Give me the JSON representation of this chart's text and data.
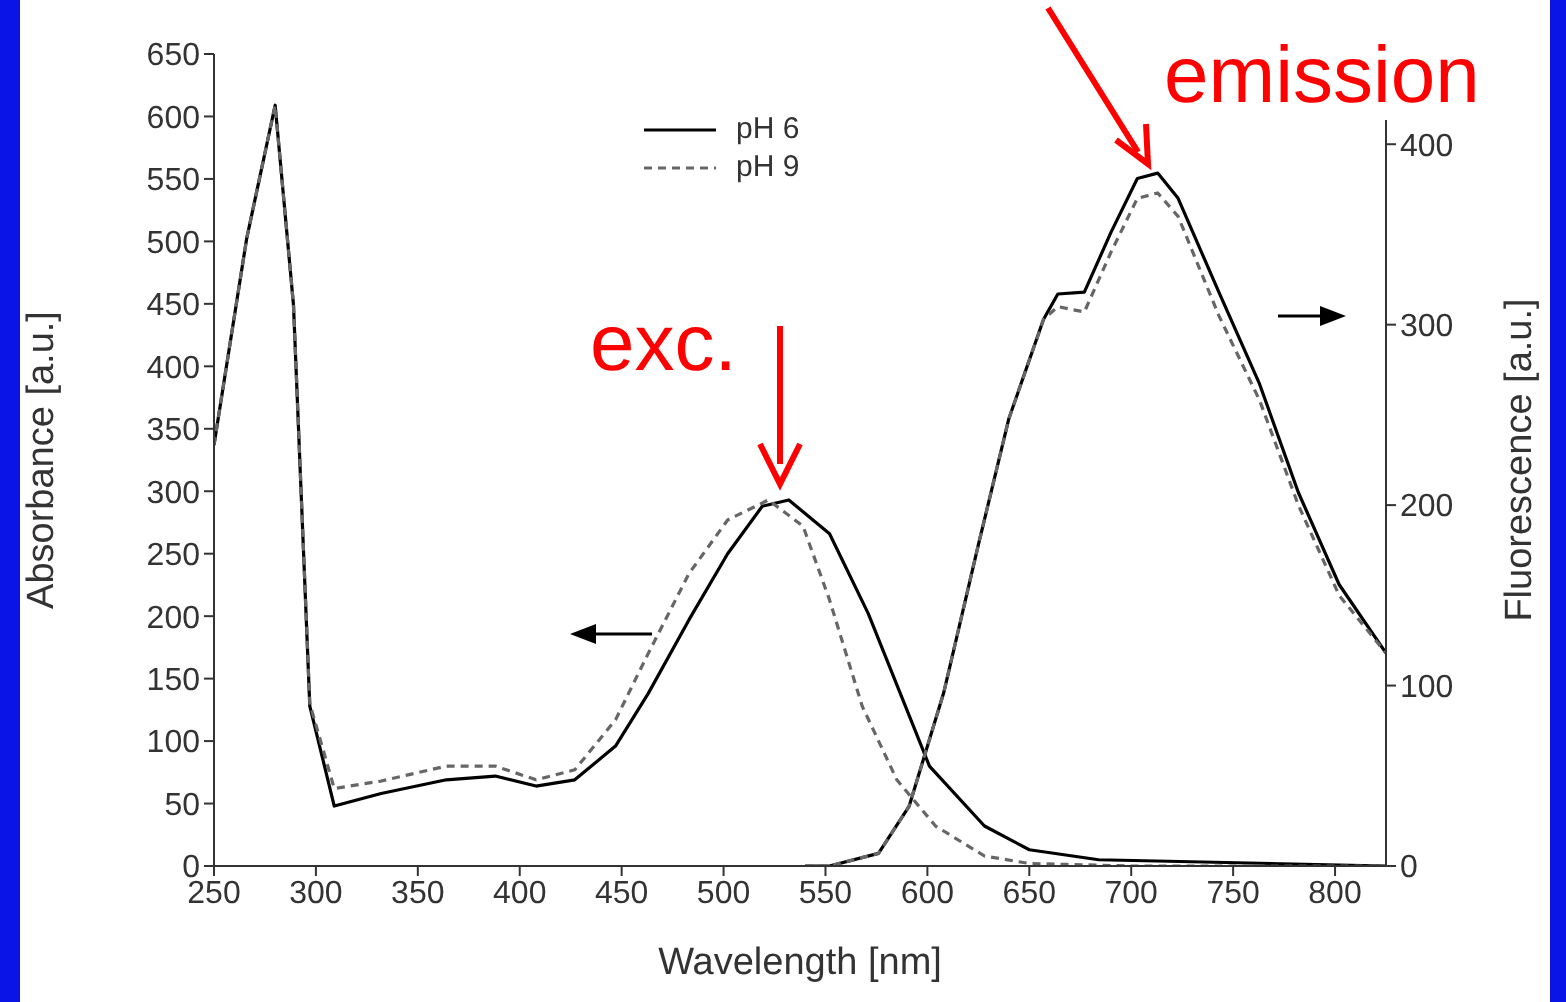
{
  "chart_data": {
    "type": "line",
    "xlabel": "Wavelength [nm]",
    "ylabel": "Absorbance [a.u.]",
    "y2label": "Fluorescence [a.u.]",
    "xlim": [
      250,
      825
    ],
    "xticks": [
      250,
      300,
      350,
      400,
      450,
      500,
      550,
      600,
      650,
      700,
      750,
      800
    ],
    "ylim": [
      0,
      650
    ],
    "yticks": [
      0,
      50,
      100,
      150,
      200,
      250,
      300,
      350,
      400,
      450,
      500,
      550,
      600,
      650
    ],
    "y2lim": [
      0,
      450
    ],
    "y2ticks": [
      0,
      100,
      200,
      300,
      400
    ],
    "legend": "top left",
    "grid": false,
    "annotations": [
      "exc.",
      "emission"
    ],
    "series": [
      {
        "name": "pH 6",
        "color": "#000000",
        "line_style": "solid",
        "x": [
          250,
          266,
          280,
          289,
          297,
          309,
          332,
          364,
          388,
          408,
          427,
          447,
          463,
          483,
          502,
          519,
          532,
          552,
          571,
          601,
          628,
          650,
          684,
          825
        ],
        "values": [
          337,
          502,
          609,
          449,
          128,
          48,
          58,
          69,
          72,
          64,
          69,
          96,
          138,
          197,
          250,
          288,
          293,
          266,
          202,
          80,
          32,
          13,
          5,
          0
        ]
      },
      {
        "name": "pH 9",
        "color": "#666666",
        "line_style": "dashed",
        "x": [
          250,
          266,
          280,
          289,
          297,
          309,
          332,
          364,
          388,
          408,
          427,
          447,
          463,
          483,
          502,
          522,
          539,
          552,
          568,
          585,
          604,
          628,
          650,
          700,
          825
        ],
        "values": [
          337,
          502,
          609,
          449,
          130,
          62,
          68,
          80,
          80,
          69,
          77,
          117,
          170,
          234,
          277,
          293,
          272,
          213,
          128,
          69,
          32,
          8,
          2,
          0,
          0
        ]
      },
      {
        "color": "#000000",
        "line_style": "solid",
        "axis": "y2",
        "x": [
          540,
          552,
          576,
          591,
          608,
          625,
          640,
          657,
          664,
          677,
          690,
          703,
          713,
          723,
          743,
          763,
          782,
          802,
          825
        ],
        "values": [
          0,
          0,
          7,
          33,
          96,
          178,
          248,
          303,
          317,
          318,
          351,
          381,
          384,
          370,
          318,
          267,
          207,
          156,
          118
        ]
      },
      {
        "color": "#666666",
        "line_style": "dashed",
        "axis": "y2",
        "x": [
          540,
          552,
          576,
          591,
          608,
          625,
          640,
          657,
          664,
          677,
          690,
          703,
          713,
          723,
          743,
          763,
          782,
          802,
          825
        ],
        "values": [
          0,
          0,
          7,
          33,
          96,
          178,
          248,
          303,
          310,
          307,
          340,
          370,
          373,
          360,
          305,
          258,
          200,
          150,
          118
        ]
      }
    ]
  }
}
